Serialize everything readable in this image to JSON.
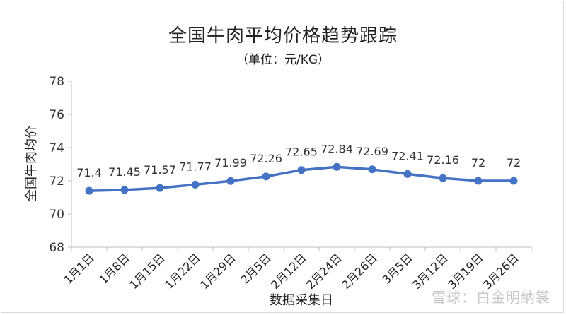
{
  "chart_data": {
    "type": "line",
    "title": "全国牛肉平均价格趋势跟踪",
    "subtitle": "（单位：元/KG）",
    "xlabel": "数据采集日",
    "ylabel": "全国牛肉均价",
    "categories": [
      "1月1日",
      "1月8日",
      "1月15日",
      "1月22日",
      "1月29日",
      "2月5日",
      "2月12日",
      "2月24日",
      "2月26日",
      "3月5日",
      "3月12日",
      "3月19日",
      "3月26日"
    ],
    "series": [
      {
        "values": [
          71.4,
          71.45,
          71.57,
          71.77,
          71.99,
          72.26,
          72.65,
          72.84,
          72.69,
          72.41,
          72.16,
          72,
          72
        ]
      }
    ],
    "data_labels": [
      "71.4",
      "71.45",
      "71.57",
      "71.77",
      "71.99",
      "72.26",
      "72.65",
      "72.84",
      "72.69",
      "72.41",
      "72.16",
      "72",
      "72"
    ],
    "yticks": [
      68,
      70,
      72,
      74,
      76,
      78
    ],
    "ylim": [
      68,
      78
    ],
    "grid": false,
    "legend": "none",
    "line_color": "#4472c4"
  },
  "watermark": "雪球：白金明纳裳"
}
